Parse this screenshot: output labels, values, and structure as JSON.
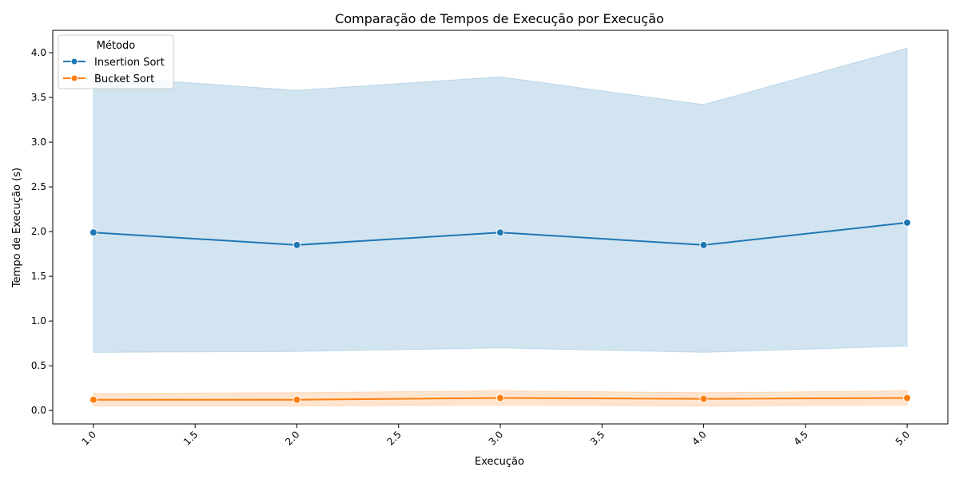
{
  "chart_data": {
    "type": "line",
    "title": "Comparação de Tempos de Execução por Execução",
    "xlabel": "Execução",
    "ylabel": "Tempo de Execução (s)",
    "xlim": [
      0.8,
      5.2
    ],
    "ylim": [
      -0.15,
      4.25
    ],
    "xticks": [
      1.0,
      1.5,
      2.0,
      2.5,
      3.0,
      3.5,
      4.0,
      4.5,
      5.0
    ],
    "xtick_labels": [
      "1.0",
      "1.5",
      "2.0",
      "2.5",
      "3.0",
      "3.5",
      "4.0",
      "4.5",
      "5.0"
    ],
    "yticks": [
      0.0,
      0.5,
      1.0,
      1.5,
      2.0,
      2.5,
      3.0,
      3.5,
      4.0
    ],
    "ytick_labels": [
      "0.0",
      "0.5",
      "1.0",
      "1.5",
      "2.0",
      "2.5",
      "3.0",
      "3.5",
      "4.0"
    ],
    "x_tick_rotation_deg": 45,
    "grid": false,
    "legend": {
      "title": "Método",
      "location": "upper-left"
    },
    "x": [
      1.0,
      2.0,
      3.0,
      4.0,
      5.0
    ],
    "series": [
      {
        "name": "Insertion Sort",
        "color": "#1f77b4",
        "marker": "circle",
        "values": [
          1.99,
          1.85,
          1.99,
          1.85,
          2.1
        ],
        "band_upper": [
          3.74,
          3.58,
          3.73,
          3.42,
          4.05
        ],
        "band_lower": [
          0.65,
          0.66,
          0.7,
          0.65,
          0.72
        ]
      },
      {
        "name": "Bucket Sort",
        "color": "#ff7f0e",
        "marker": "circle",
        "values": [
          0.12,
          0.12,
          0.14,
          0.13,
          0.14
        ],
        "band_upper": [
          0.19,
          0.2,
          0.22,
          0.2,
          0.22
        ],
        "band_lower": [
          0.05,
          0.05,
          0.06,
          0.05,
          0.06
        ]
      }
    ]
  }
}
